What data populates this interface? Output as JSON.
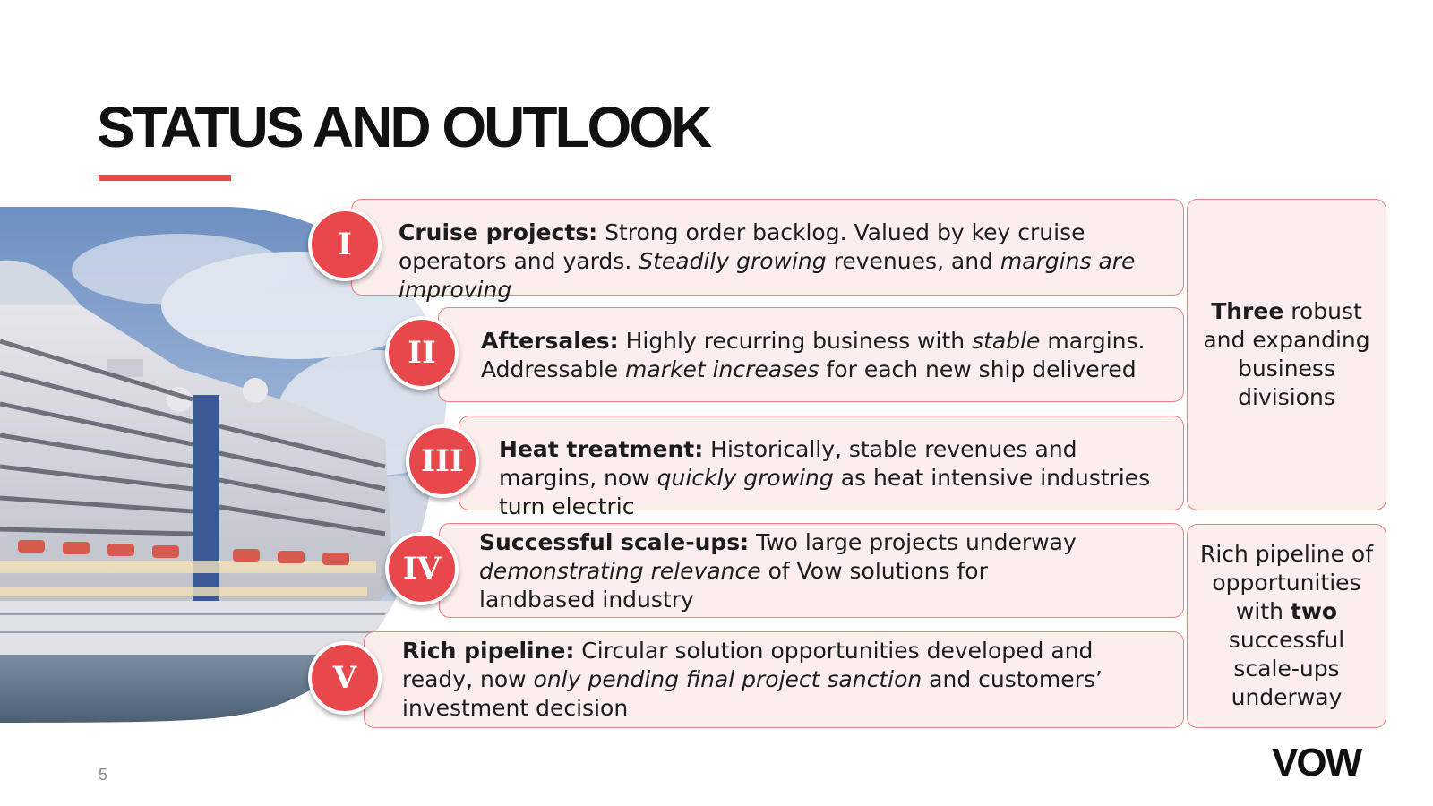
{
  "slide": {
    "title": "STATUS AND OUTLOOK",
    "page_number": "5",
    "logo_text": "VOW",
    "accent_color": "#e8484a",
    "box_fill": "#fdeeee",
    "box_border": "#ef7d7f"
  },
  "items": [
    {
      "numeral": "I",
      "segments": [
        {
          "text": "Cruise projects:",
          "style": "bold"
        },
        {
          "text": " Strong order backlog. Valued by key cruise operators and yards. ",
          "style": "normal"
        },
        {
          "text": "Steadily growing",
          "style": "italic"
        },
        {
          "text": " revenues, and ",
          "style": "normal"
        },
        {
          "text": "margins are improving",
          "style": "italic"
        }
      ]
    },
    {
      "numeral": "II",
      "segments": [
        {
          "text": "Aftersales:",
          "style": "bold"
        },
        {
          "text": " Highly recurring business with ",
          "style": "normal"
        },
        {
          "text": "stable",
          "style": "italic"
        },
        {
          "text": " margins. Addressable ",
          "style": "normal"
        },
        {
          "text": "market increases",
          "style": "italic"
        },
        {
          "text": " for each new ship delivered",
          "style": "normal"
        }
      ]
    },
    {
      "numeral": "III",
      "segments": [
        {
          "text": "Heat treatment:",
          "style": "bold"
        },
        {
          "text": " Historically, stable revenues and margins, now ",
          "style": "normal"
        },
        {
          "text": "quickly growing",
          "style": "italic"
        },
        {
          "text": " as heat intensive industries turn electric",
          "style": "normal"
        }
      ]
    },
    {
      "numeral": "IV",
      "segments": [
        {
          "text": "Successful scale-ups:",
          "style": "bold"
        },
        {
          "text": " Two large projects underway ",
          "style": "normal"
        },
        {
          "text": "demonstrating relevance",
          "style": "italic"
        },
        {
          "text": " of Vow solutions for landbased industry",
          "style": "normal"
        }
      ]
    },
    {
      "numeral": "V",
      "segments": [
        {
          "text": "Rich pipeline:",
          "style": "bold"
        },
        {
          "text": " Circular solution opportunities developed and ready, now ",
          "style": "normal"
        },
        {
          "text": "only pending final project sanction",
          "style": "italic"
        },
        {
          "text": " and customers’ investment decision",
          "style": "normal"
        }
      ]
    }
  ],
  "side_boxes": [
    {
      "segments": [
        {
          "text": "Three",
          "style": "bold"
        },
        {
          "text": " robust and expanding business divisions",
          "style": "normal"
        }
      ]
    },
    {
      "segments": [
        {
          "text": "Rich pipeline of opportunities with ",
          "style": "normal"
        },
        {
          "text": "two",
          "style": "bold"
        },
        {
          "text": " successful scale-ups underway",
          "style": "normal"
        }
      ]
    }
  ]
}
